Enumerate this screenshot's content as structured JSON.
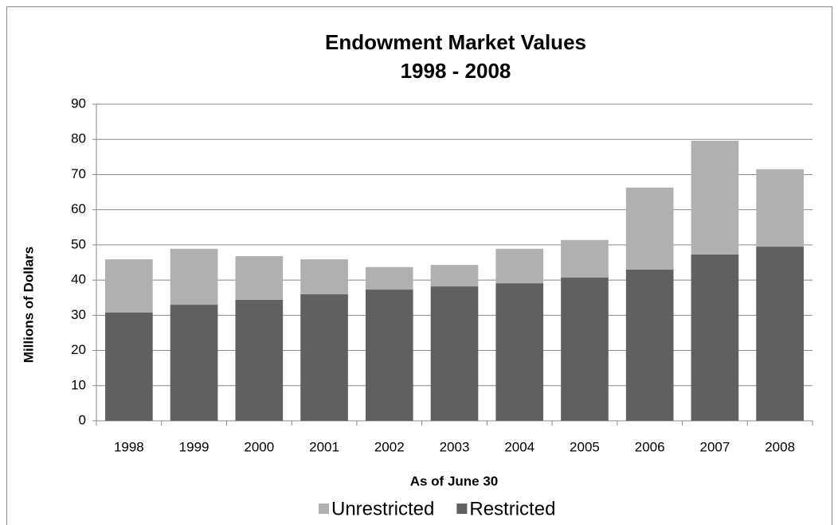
{
  "chart_data": {
    "type": "stacked_bar",
    "title": "Endowment Market Values",
    "subtitle": "1998 - 2008",
    "x_label": "As of June 30",
    "y_label": "Millions of Dollars",
    "categories": [
      "1998",
      "1999",
      "2000",
      "2001",
      "2002",
      "2003",
      "2004",
      "2005",
      "2006",
      "2007",
      "2008"
    ],
    "series": [
      {
        "name": "Restricted",
        "color": "#606060",
        "values": [
          30.8,
          33.0,
          34.4,
          36.0,
          37.3,
          38.2,
          39.1,
          40.7,
          43.0,
          47.3,
          49.5
        ]
      },
      {
        "name": "Unrestricted",
        "color": "#b0b0b0",
        "values": [
          15.1,
          15.9,
          12.4,
          9.9,
          6.4,
          6.1,
          9.8,
          10.7,
          23.3,
          32.3,
          22.0
        ]
      }
    ],
    "ylim": [
      0,
      90
    ],
    "yticks": [
      0,
      10,
      20,
      30,
      40,
      50,
      60,
      70,
      80,
      90
    ],
    "grid": true,
    "legend": "bottom"
  }
}
